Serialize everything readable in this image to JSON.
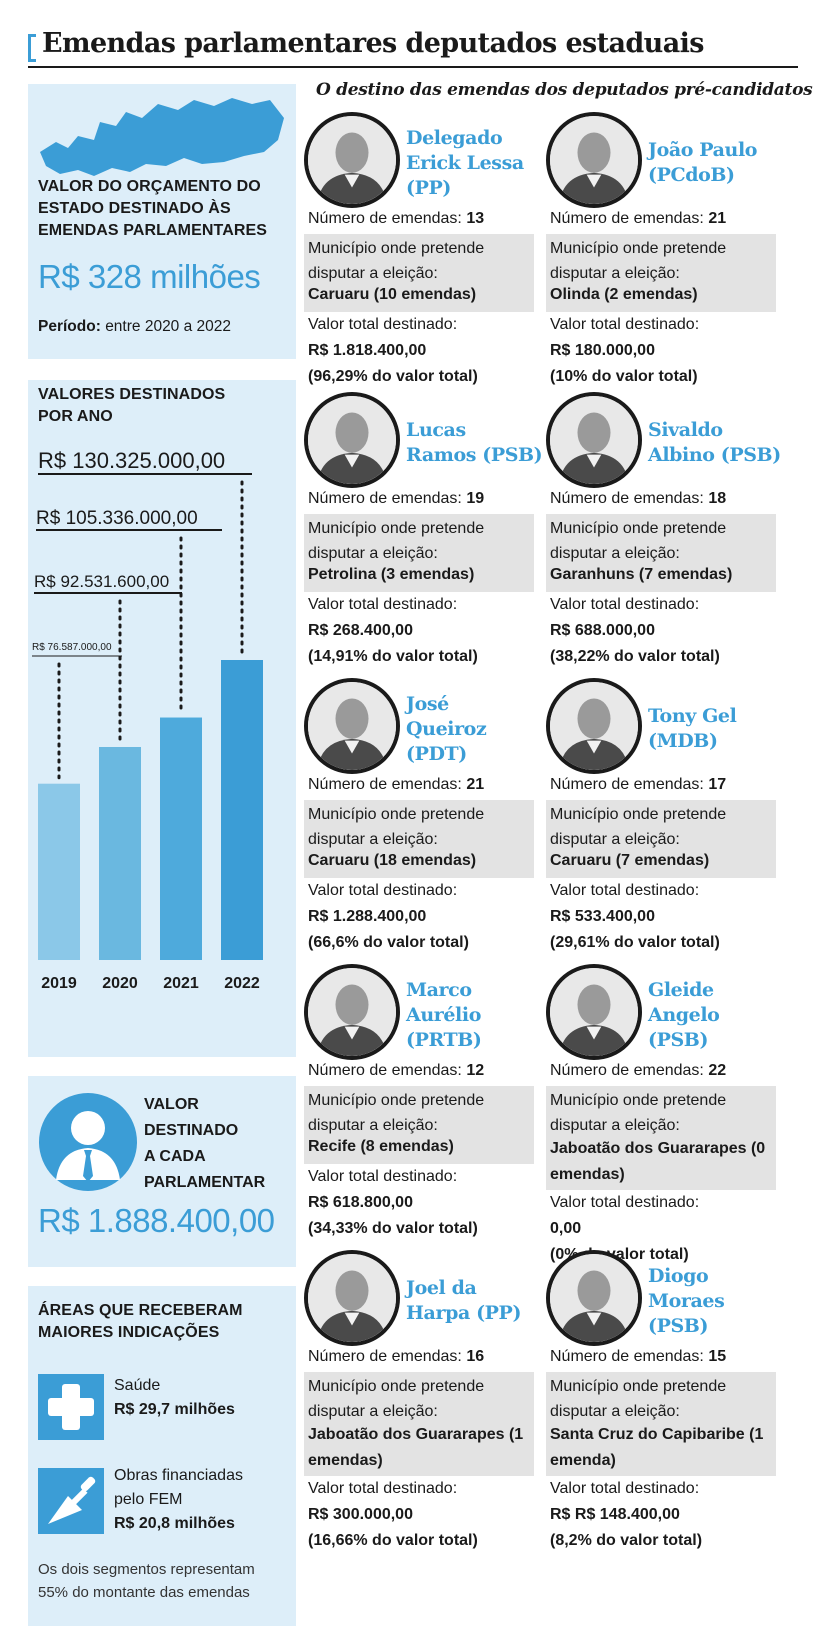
{
  "title": "Emendas parlamentares deputados estaduais",
  "subtitle": "O destino das emendas dos deputados pré-candidatos",
  "budget_panel": {
    "heading_lines": [
      "VALOR DO ORÇAMENTO DO",
      "ESTADO DESTINADO ÀS",
      "EMENDAS PARLAMENTARES"
    ],
    "amount": "R$ 328 milhões",
    "period_label": "Período:",
    "period_value": "entre 2020 a 2022"
  },
  "yearly_panel": {
    "heading_lines": [
      "VALORES DESTINADOS",
      "POR ANO"
    ]
  },
  "chart_data": {
    "type": "bar",
    "categories": [
      "2019",
      "2020",
      "2021",
      "2022"
    ],
    "values": [
      76587000,
      92531600,
      105336000,
      130325000
    ],
    "value_labels": [
      "R$ 76.587.000,00",
      "R$ 92.531.600,00",
      "R$ 105.336.000,00",
      "R$ 130.325.000,00"
    ],
    "bar_colors": [
      "#8bc8e8",
      "#6ab8e0",
      "#4eaadc",
      "#3b9dd6"
    ],
    "title": "VALORES DESTINADOS POR ANO",
    "xlabel": "",
    "ylabel": "",
    "ylim": [
      0,
      130325000
    ],
    "grid": false
  },
  "per_parliamentarian_panel": {
    "heading_lines": [
      "VALOR",
      "DESTINADO",
      "A CADA",
      "PARLAMENTAR"
    ],
    "amount": "R$ 1.888.400,00",
    "icon": "person-tie-icon"
  },
  "areas_panel": {
    "heading_lines": [
      "ÁREAS QUE RECEBERAM",
      "MAIORES INDICAÇÕES"
    ],
    "items": [
      {
        "icon": "health-cross-icon",
        "label_lines": [
          "Saúde"
        ],
        "value": "R$ 29,7 milhões"
      },
      {
        "icon": "trowel-icon",
        "label_lines": [
          "Obras financiadas",
          "pelo FEM"
        ],
        "value": "R$ 20,8 milhões"
      }
    ],
    "footnote": "Os dois segmentos representam 55% do montante das emendas"
  },
  "labels": {
    "count": "Número de emendas:",
    "municipality_lines": [
      "Município onde pretende",
      "disputar a eleição:"
    ],
    "total": "Valor  total destinado:"
  },
  "accent_color": "#3b9dd6",
  "candidates": [
    {
      "name_lines": [
        "Delegado",
        "Erick Lessa",
        "(PP)"
      ],
      "count": "13",
      "municipality": "Caruaru (10 emendas)",
      "value": "R$ 1.818.400,00",
      "percent": "(96,29% do valor total)"
    },
    {
      "name_lines": [
        "João Paulo",
        "(PCdoB)"
      ],
      "count": "21",
      "municipality": "Olinda (2 emendas)",
      "value": "R$ 180.000,00",
      "percent": "(10% do valor total)"
    },
    {
      "name_lines": [
        "Lucas",
        "Ramos (PSB)"
      ],
      "count": "19",
      "municipality": "Petrolina (3 emendas)",
      "value": "R$ 268.400,00",
      "percent": "(14,91% do valor total)"
    },
    {
      "name_lines": [
        "Sivaldo",
        "Albino (PSB)"
      ],
      "count": "18",
      "municipality": "Garanhuns (7 emendas)",
      "value": "R$ 688.000,00",
      "percent": "(38,22% do valor total)"
    },
    {
      "name_lines": [
        "José",
        "Queiroz",
        "(PDT)"
      ],
      "count": "21",
      "municipality": "Caruaru (18 emendas)",
      "value": "R$ 1.288.400,00",
      "percent": "(66,6% do valor total)"
    },
    {
      "name_lines": [
        "Tony Gel",
        "(MDB)"
      ],
      "count": "17",
      "municipality": "Caruaru (7 emendas)",
      "value": "R$ 533.400,00",
      "percent": "(29,61% do valor total)"
    },
    {
      "name_lines": [
        "Marco",
        "Aurélio",
        "(PRTB)"
      ],
      "count": "12",
      "municipality": "Recife (8 emendas)",
      "value": "R$ 618.800,00",
      "percent": "(34,33% do valor total)"
    },
    {
      "name_lines": [
        "Gleide",
        "Angelo",
        "(PSB)"
      ],
      "count": "22",
      "municipality": "Jaboatão dos Guararapes (0 emendas)",
      "value": "0,00",
      "percent": "(0% do valor total)"
    },
    {
      "name_lines": [
        "Joel da",
        "Harpa (PP)"
      ],
      "count": "16",
      "municipality": "Jaboatão dos Guararapes (1 emendas)",
      "value": "R$ 300.000,00",
      "percent": "(16,66% do valor total)"
    },
    {
      "name_lines": [
        "Diogo",
        "Moraes",
        "(PSB)"
      ],
      "count": "15",
      "municipality": "Santa Cruz do Capibaribe (1 emenda)",
      "value": "R$ R$ 148.400,00",
      "percent": "(8,2% do valor total)"
    }
  ]
}
